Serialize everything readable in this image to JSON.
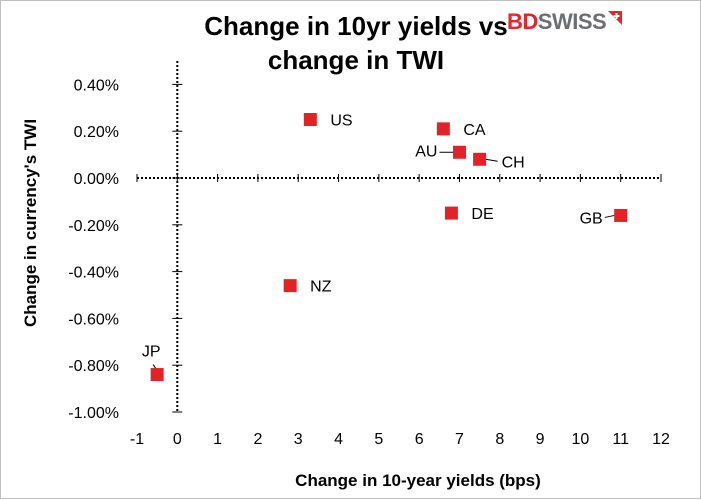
{
  "brand": {
    "part1": "BD",
    "part2": "SWISS",
    "mark_icon": "plus-flag-icon",
    "accent": "#e3262c",
    "gray": "#6d6e71"
  },
  "chart_data": {
    "type": "scatter",
    "title_line1": "Change in 10yr yields vs",
    "title_line2": "change in TWI",
    "xlabel": "Change in 10-year yields (bps)",
    "ylabel": "Change in currency's  TWI",
    "xlim": [
      -1,
      12
    ],
    "ylim": [
      -1.0,
      0.5
    ],
    "xticks": [
      -1,
      0,
      1,
      2,
      3,
      4,
      5,
      6,
      7,
      8,
      9,
      10,
      11,
      12
    ],
    "xtick_labels": [
      "-1",
      "0",
      "1",
      "2",
      "3",
      "4",
      "5",
      "6",
      "7",
      "8",
      "9",
      "10",
      "11",
      "12"
    ],
    "yticks": [
      0.4,
      0.2,
      0.0,
      -0.2,
      -0.4,
      -0.6,
      -0.8,
      -1.0
    ],
    "ytick_labels": [
      "0.40%",
      "0.20%",
      "0.00%",
      "-0.20%",
      "-0.40%",
      "-0.60%",
      "-0.80%",
      "-1.00%"
    ],
    "marker_color": "#e32228",
    "grid": false,
    "points": [
      {
        "label": "US",
        "x": 3.3,
        "y": 0.25
      },
      {
        "label": "CA",
        "x": 6.6,
        "y": 0.21
      },
      {
        "label": "AU",
        "x": 7.0,
        "y": 0.11
      },
      {
        "label": "CH",
        "x": 7.5,
        "y": 0.08
      },
      {
        "label": "DE",
        "x": 6.8,
        "y": -0.15
      },
      {
        "label": "GB",
        "x": 11.0,
        "y": -0.16
      },
      {
        "label": "NZ",
        "x": 2.8,
        "y": -0.46
      },
      {
        "label": "JP",
        "x": -0.5,
        "y": -0.84
      }
    ]
  }
}
